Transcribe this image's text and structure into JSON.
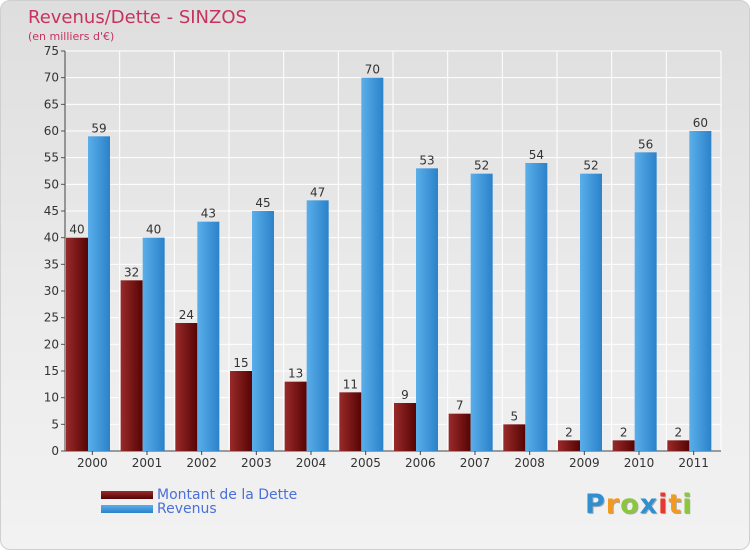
{
  "header": {
    "title": "Revenus/Dette - SINZOS",
    "subtitle": "(en milliers d'€)"
  },
  "legend": {
    "debt_label": "Montant de la Dette",
    "revenue_label": "Revenus"
  },
  "logo": {
    "letters": [
      "P",
      "r",
      "o",
      "x",
      "i",
      "t",
      "i"
    ]
  },
  "colors": {
    "debt_light": "#9a2a2a",
    "debt_dark": "#560404",
    "revenue_light": "#5aaeea",
    "revenue_dark": "#2b82c9",
    "title": "#c8325f",
    "legend_text": "#4a6fd8"
  },
  "chart_data": {
    "type": "bar",
    "title": "Revenus/Dette - SINZOS",
    "subtitle": "(en milliers d'€)",
    "categories": [
      "2000",
      "2001",
      "2002",
      "2003",
      "2004",
      "2005",
      "2006",
      "2007",
      "2008",
      "2009",
      "2010",
      "2011"
    ],
    "series": [
      {
        "name": "Montant de la Dette",
        "values": [
          40,
          32,
          24,
          15,
          13,
          11,
          9,
          7,
          5,
          2,
          2,
          2
        ]
      },
      {
        "name": "Revenus",
        "values": [
          59,
          40,
          43,
          45,
          47,
          70,
          53,
          52,
          54,
          52,
          56,
          60
        ]
      }
    ],
    "ylim": [
      0,
      75
    ],
    "yticks": [
      0,
      5,
      10,
      15,
      20,
      25,
      30,
      35,
      40,
      45,
      50,
      55,
      60,
      65,
      70,
      75
    ],
    "grid": true,
    "legend_position": "bottom-left",
    "xlabel": "",
    "ylabel": ""
  }
}
